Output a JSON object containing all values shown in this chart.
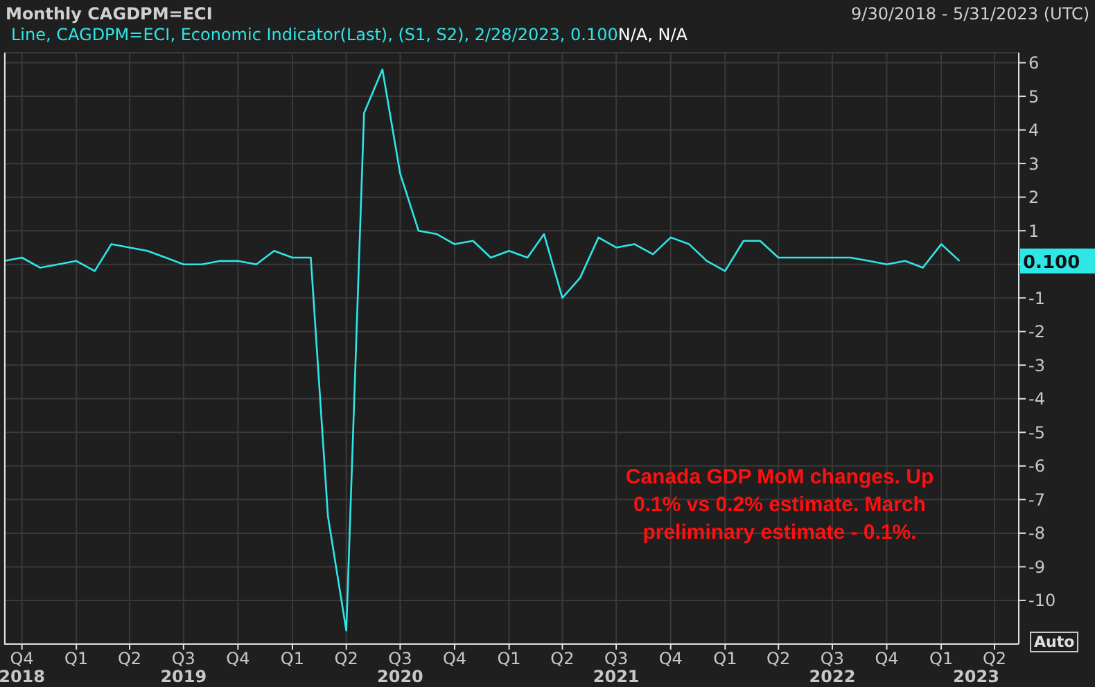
{
  "chart_data": {
    "type": "line",
    "title": "Monthly CAGDPM=ECI",
    "subtitle": "9/30/2018 - 5/31/2023 (UTC)",
    "x": [
      "2018-09",
      "2018-10",
      "2018-11",
      "2018-12",
      "2019-01",
      "2019-02",
      "2019-03",
      "2019-04",
      "2019-05",
      "2019-06",
      "2019-07",
      "2019-08",
      "2019-09",
      "2019-10",
      "2019-11",
      "2019-12",
      "2020-01",
      "2020-02",
      "2020-03",
      "2020-04",
      "2020-05",
      "2020-06",
      "2020-07",
      "2020-08",
      "2020-09",
      "2020-10",
      "2020-11",
      "2020-12",
      "2021-01",
      "2021-02",
      "2021-03",
      "2021-04",
      "2021-05",
      "2021-06",
      "2021-07",
      "2021-08",
      "2021-09",
      "2021-10",
      "2021-11",
      "2021-12",
      "2022-01",
      "2022-02",
      "2022-03",
      "2022-04",
      "2022-05",
      "2022-06",
      "2022-07",
      "2022-08",
      "2022-09",
      "2022-10",
      "2022-11",
      "2022-12",
      "2023-01",
      "2023-02"
    ],
    "series": [
      {
        "name": "Line, CAGDPM=ECI, Economic Indicator(Last), (S1, S2), 2/28/2023, 0.100",
        "color": "#2ee6e6",
        "values": [
          0.1,
          0.2,
          -0.1,
          0.0,
          0.1,
          -0.2,
          0.6,
          0.5,
          0.4,
          0.2,
          0.0,
          0.0,
          0.1,
          0.1,
          0.0,
          0.4,
          0.2,
          0.2,
          -7.5,
          -10.9,
          4.5,
          5.8,
          2.7,
          1.0,
          0.9,
          0.6,
          0.7,
          0.2,
          0.4,
          0.2,
          0.9,
          -1.0,
          -0.4,
          0.8,
          0.5,
          0.6,
          0.3,
          0.8,
          0.6,
          0.1,
          -0.2,
          0.7,
          0.7,
          0.2,
          0.2,
          0.2,
          0.2,
          0.2,
          0.1,
          0.0,
          0.1,
          -0.1,
          0.6,
          0.1
        ]
      }
    ],
    "xlim": [
      "2018-09-01",
      "2023-05-12"
    ],
    "xticks": [
      {
        "value": "2018-10",
        "label": "Q4"
      },
      {
        "value": "2019-01",
        "label": "Q1"
      },
      {
        "value": "2019-04",
        "label": "Q2"
      },
      {
        "value": "2019-07",
        "label": "Q3"
      },
      {
        "value": "2019-10",
        "label": "Q4"
      },
      {
        "value": "2020-01",
        "label": "Q1"
      },
      {
        "value": "2020-04",
        "label": "Q2"
      },
      {
        "value": "2020-07",
        "label": "Q3"
      },
      {
        "value": "2020-10",
        "label": "Q4"
      },
      {
        "value": "2021-01",
        "label": "Q1"
      },
      {
        "value": "2021-04",
        "label": "Q2"
      },
      {
        "value": "2021-07",
        "label": "Q3"
      },
      {
        "value": "2021-10",
        "label": "Q4"
      },
      {
        "value": "2022-01",
        "label": "Q1"
      },
      {
        "value": "2022-04",
        "label": "Q2"
      },
      {
        "value": "2022-07",
        "label": "Q3"
      },
      {
        "value": "2022-10",
        "label": "Q4"
      },
      {
        "value": "2023-01",
        "label": "Q1"
      },
      {
        "value": "2023-04",
        "label": "Q2"
      }
    ],
    "x2lim": [
      "2018-09-01",
      "2023-05-12"
    ],
    "x2ticks": [
      {
        "value": "2018-10",
        "label": "2018"
      },
      {
        "value": "2019-07",
        "label": "2019"
      },
      {
        "value": "2020-07",
        "label": "2020"
      },
      {
        "value": "2021-07",
        "label": "2021"
      },
      {
        "value": "2022-07",
        "label": "2022"
      },
      {
        "value": "2023-03",
        "label": "2023"
      }
    ],
    "ylim": [
      -11.3,
      6.3
    ],
    "yticks": [
      -10,
      -9,
      -8,
      -7,
      -6,
      -5,
      -4,
      -3,
      -2,
      -1,
      {
        "value": 0,
        "label": null
      },
      1,
      2,
      3,
      4,
      5,
      6
    ],
    "grid": true,
    "legend": "top left",
    "marker": "none",
    "line_style": "solid",
    "annotations": [
      "N/A, N/A",
      "0.100",
      "Canada GDP MoM changes.  Up 0.1% vs 0.2% estimate. March preliminary estimate - 0.1%.",
      "Auto"
    ]
  }
}
